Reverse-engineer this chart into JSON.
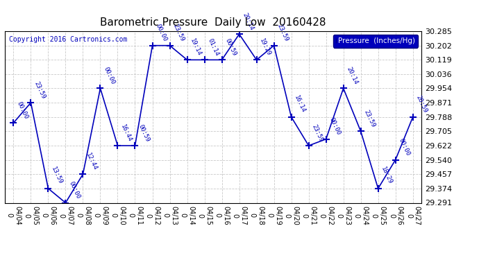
{
  "title": "Barometric Pressure  Daily Low  20160428",
  "copyright": "Copyright 2016 Cartronics.com",
  "legend_label": "Pressure  (Inches/Hg)",
  "dates": [
    "04/04",
    "04/05",
    "04/06",
    "04/07",
    "04/08",
    "04/09",
    "04/10",
    "04/11",
    "04/12",
    "04/13",
    "04/14",
    "04/15",
    "04/16",
    "04/17",
    "04/18",
    "04/19",
    "04/20",
    "04/21",
    "04/22",
    "04/23",
    "04/24",
    "04/25",
    "04/26",
    "04/27"
  ],
  "values": [
    29.754,
    29.871,
    29.374,
    29.291,
    29.457,
    29.954,
    29.622,
    29.622,
    30.202,
    30.202,
    30.119,
    30.119,
    30.119,
    30.268,
    30.119,
    30.202,
    29.788,
    29.622,
    29.66,
    29.954,
    29.705,
    29.374,
    29.54,
    29.788
  ],
  "point_labels": [
    "00:00",
    "23:59",
    "13:59",
    "00:00",
    "12:44",
    "00:00",
    "16:44",
    "00:59",
    "00:00",
    "23:59",
    "19:14",
    "01:14",
    "00:59",
    "20:14",
    "19:29",
    "23:59",
    "16:14",
    "23:59",
    "00:00",
    "20:14",
    "23:59",
    "18:29",
    "00:00",
    "20:59"
  ],
  "ylim_min": 29.291,
  "ylim_max": 30.285,
  "yticks": [
    29.291,
    29.374,
    29.457,
    29.54,
    29.622,
    29.705,
    29.788,
    29.871,
    29.954,
    30.036,
    30.119,
    30.202,
    30.285
  ],
  "line_color": "#0000bb",
  "bg_color": "#ffffff",
  "grid_color": "#bbbbbb",
  "title_color": "#000000",
  "legend_bg": "#0000bb",
  "legend_text_color": "#ffffff"
}
